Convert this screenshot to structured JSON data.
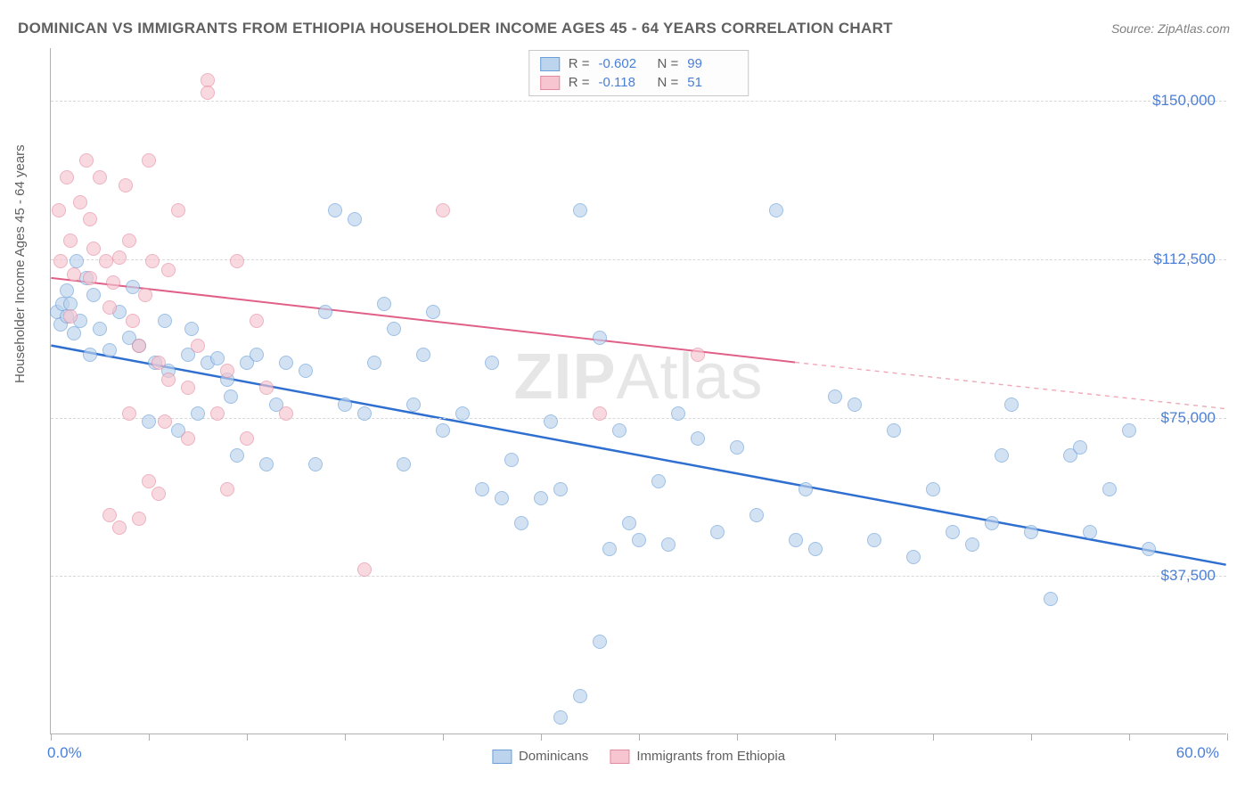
{
  "title": "DOMINICAN VS IMMIGRANTS FROM ETHIOPIA HOUSEHOLDER INCOME AGES 45 - 64 YEARS CORRELATION CHART",
  "source": "Source: ZipAtlas.com",
  "ylabel": "Householder Income Ages 45 - 64 years",
  "watermark_bold": "ZIP",
  "watermark_rest": "Atlas",
  "chart": {
    "type": "scatter",
    "x_domain": [
      0,
      60
    ],
    "y_domain": [
      0,
      162500
    ],
    "x_ticks_pct": [
      0,
      8.3,
      16.7,
      25,
      33.3,
      41.7,
      50,
      58.3,
      66.7,
      75,
      83.3,
      91.7,
      100
    ],
    "x_axis_labels": [
      {
        "pos_pct": 0,
        "text": "0.0%"
      },
      {
        "pos_pct": 100,
        "text": "60.0%",
        "align": "right"
      }
    ],
    "y_gridlines": [
      37500,
      75000,
      112500,
      150000
    ],
    "y_tick_labels": [
      "$37,500",
      "$75,000",
      "$112,500",
      "$150,000"
    ],
    "background_color": "#ffffff",
    "grid_color": "#d8d8d8",
    "axis_color": "#b0b0b0",
    "marker_radius": 8,
    "marker_border_width": 1.2,
    "series": [
      {
        "name": "Dominicans",
        "fill": "#bcd4ee",
        "stroke": "#6a9fd8",
        "fill_opacity": 0.65,
        "R": "-0.602",
        "N": "99",
        "trend": {
          "x1": 0,
          "y1": 92000,
          "x2": 60,
          "y2": 40000,
          "color": "#2e6fd0",
          "width": 2.5,
          "dash_after_x": 60
        },
        "points": [
          [
            0.3,
            100000
          ],
          [
            0.5,
            97000
          ],
          [
            0.6,
            102000
          ],
          [
            0.8,
            99000
          ],
          [
            0.8,
            105000
          ],
          [
            1.0,
            102000
          ],
          [
            1.2,
            95000
          ],
          [
            1.3,
            112000
          ],
          [
            1.5,
            98000
          ],
          [
            1.8,
            108000
          ],
          [
            2.0,
            90000
          ],
          [
            2.2,
            104000
          ],
          [
            2.5,
            96000
          ],
          [
            3.0,
            91000
          ],
          [
            3.5,
            100000
          ],
          [
            4.0,
            94000
          ],
          [
            4.2,
            106000
          ],
          [
            4.5,
            92000
          ],
          [
            5.0,
            74000
          ],
          [
            5.3,
            88000
          ],
          [
            5.8,
            98000
          ],
          [
            6.0,
            86000
          ],
          [
            6.5,
            72000
          ],
          [
            7.0,
            90000
          ],
          [
            7.2,
            96000
          ],
          [
            7.5,
            76000
          ],
          [
            8.0,
            88000
          ],
          [
            8.5,
            89000
          ],
          [
            9.0,
            84000
          ],
          [
            9.2,
            80000
          ],
          [
            9.5,
            66000
          ],
          [
            10.0,
            88000
          ],
          [
            10.5,
            90000
          ],
          [
            11.0,
            64000
          ],
          [
            11.5,
            78000
          ],
          [
            12.0,
            88000
          ],
          [
            13.0,
            86000
          ],
          [
            13.5,
            64000
          ],
          [
            14.0,
            100000
          ],
          [
            14.5,
            124000
          ],
          [
            15.0,
            78000
          ],
          [
            15.5,
            122000
          ],
          [
            16.0,
            76000
          ],
          [
            16.5,
            88000
          ],
          [
            17.0,
            102000
          ],
          [
            17.5,
            96000
          ],
          [
            18.0,
            64000
          ],
          [
            18.5,
            78000
          ],
          [
            19.0,
            90000
          ],
          [
            19.5,
            100000
          ],
          [
            20.0,
            72000
          ],
          [
            21.0,
            76000
          ],
          [
            22.0,
            58000
          ],
          [
            22.5,
            88000
          ],
          [
            23.0,
            56000
          ],
          [
            23.5,
            65000
          ],
          [
            24.0,
            50000
          ],
          [
            25.0,
            56000
          ],
          [
            25.5,
            74000
          ],
          [
            26.0,
            58000
          ],
          [
            27.0,
            124000
          ],
          [
            28.0,
            94000
          ],
          [
            28.5,
            44000
          ],
          [
            29.0,
            72000
          ],
          [
            29.5,
            50000
          ],
          [
            30.0,
            46000
          ],
          [
            31.0,
            60000
          ],
          [
            31.5,
            45000
          ],
          [
            32.0,
            76000
          ],
          [
            33.0,
            70000
          ],
          [
            34.0,
            48000
          ],
          [
            35.0,
            68000
          ],
          [
            36.0,
            52000
          ],
          [
            37.0,
            124000
          ],
          [
            38.0,
            46000
          ],
          [
            38.5,
            58000
          ],
          [
            39.0,
            44000
          ],
          [
            40.0,
            80000
          ],
          [
            41.0,
            78000
          ],
          [
            42.0,
            46000
          ],
          [
            43.0,
            72000
          ],
          [
            44.0,
            42000
          ],
          [
            45.0,
            58000
          ],
          [
            46.0,
            48000
          ],
          [
            47.0,
            45000
          ],
          [
            48.0,
            50000
          ],
          [
            48.5,
            66000
          ],
          [
            49.0,
            78000
          ],
          [
            50.0,
            48000
          ],
          [
            51.0,
            32000
          ],
          [
            52.0,
            66000
          ],
          [
            52.5,
            68000
          ],
          [
            53.0,
            48000
          ],
          [
            54.0,
            58000
          ],
          [
            55.0,
            72000
          ],
          [
            56.0,
            44000
          ],
          [
            28.0,
            22000
          ],
          [
            27.0,
            9000
          ],
          [
            26.0,
            4000
          ]
        ]
      },
      {
        "name": "Immigrants from Ethiopia",
        "fill": "#f6c5d0",
        "stroke": "#e48aa0",
        "fill_opacity": 0.65,
        "R": "-0.118",
        "N": "51",
        "trend": {
          "x1": 0,
          "y1": 108000,
          "x2": 38,
          "y2": 88000,
          "dash_to_x": 60,
          "dash_to_y": 77000,
          "color": "#e06088",
          "width": 2,
          "dash_color": "#f0a8b8"
        },
        "points": [
          [
            0.4,
            124000
          ],
          [
            0.8,
            132000
          ],
          [
            1.0,
            117000
          ],
          [
            1.2,
            109000
          ],
          [
            1.5,
            126000
          ],
          [
            1.8,
            136000
          ],
          [
            2.0,
            108000
          ],
          [
            2.2,
            115000
          ],
          [
            2.5,
            132000
          ],
          [
            2.8,
            112000
          ],
          [
            3.0,
            101000
          ],
          [
            3.2,
            107000
          ],
          [
            3.5,
            113000
          ],
          [
            3.8,
            130000
          ],
          [
            4.0,
            117000
          ],
          [
            4.2,
            98000
          ],
          [
            4.5,
            92000
          ],
          [
            4.8,
            104000
          ],
          [
            5.0,
            136000
          ],
          [
            5.2,
            112000
          ],
          [
            5.5,
            88000
          ],
          [
            5.8,
            74000
          ],
          [
            6.0,
            110000
          ],
          [
            6.5,
            124000
          ],
          [
            7.0,
            82000
          ],
          [
            7.5,
            92000
          ],
          [
            8.0,
            155000
          ],
          [
            8.5,
            76000
          ],
          [
            9.0,
            86000
          ],
          [
            9.5,
            112000
          ],
          [
            10.0,
            70000
          ],
          [
            10.5,
            98000
          ],
          [
            11.0,
            82000
          ],
          [
            8.0,
            152000
          ],
          [
            3.0,
            52000
          ],
          [
            3.5,
            49000
          ],
          [
            4.5,
            51000
          ],
          [
            5.0,
            60000
          ],
          [
            6.0,
            84000
          ],
          [
            7.0,
            70000
          ],
          [
            5.5,
            57000
          ],
          [
            4.0,
            76000
          ],
          [
            9.0,
            58000
          ],
          [
            12.0,
            76000
          ],
          [
            16.0,
            39000
          ],
          [
            20.0,
            124000
          ],
          [
            28.0,
            76000
          ],
          [
            33.0,
            90000
          ],
          [
            0.5,
            112000
          ],
          [
            1.0,
            99000
          ],
          [
            2.0,
            122000
          ]
        ]
      }
    ]
  },
  "legend_bottom": [
    {
      "label": "Dominicans",
      "fill": "#bcd4ee",
      "stroke": "#6a9fd8"
    },
    {
      "label": "Immigrants from Ethiopia",
      "fill": "#f6c5d0",
      "stroke": "#e48aa0"
    }
  ]
}
